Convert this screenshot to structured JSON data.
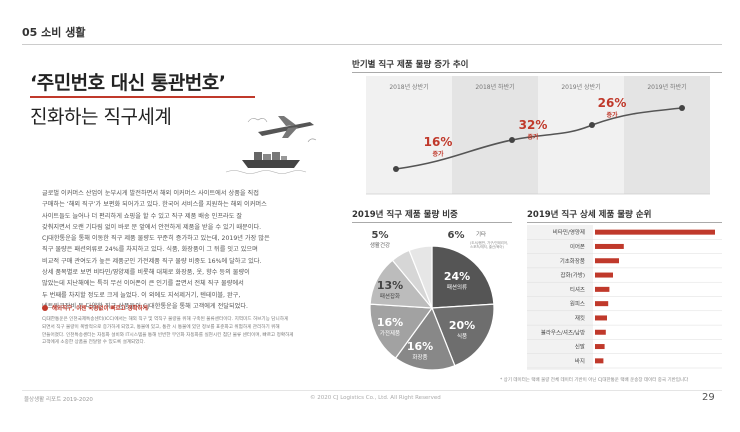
{
  "section": {
    "label": "05 소비 생활"
  },
  "heading": {
    "line1": "‘주민번호 대신 통관번호’",
    "line2": "진화하는 직구세계"
  },
  "body_text": "글로벌 이커머스 산업이 눈부시게 발전하면서 해외 이커머스 사이트에서 상품을 직접\n구매하는 ‘해외 직구’가 보편화 되어가고 있다. 한국어 서비스를 지원하는 해외 이커머스\n사이트들도 늘어나 더 편리하게 쇼핑을 할 수 있고 직구 제품 배송 인프라도 잘\n갖춰지면서 오랜 기다림 없이 바로 문 앞에서 안전하게 제품을 받을 수 있기 때문이다.\nCJ대한통운을 통해 이동한 직구 제품 물량도 꾸준히 증가하고 있는데, 2019년 가장 많은\n직구 물량은 패션의류로 24%를 차지하고 있다. 식품, 화장품이 그 뒤를 잇고 있으며\n비교적 구매 관여도가 높은 제품군인 가전제품 직구 물량 비중도 16%에 달하고 있다.\n상세 품목별로 보면 비타민/영양제를 비롯해 대체로 화장품, 옷, 향수 등의 물량이\n많았는데 지난해에는 특히 무선 이어폰이 큰 인기를 끌면서 전체 직구 물량에서\n두 번째를 차지할 정도로 크게 늘었다. 이 외에도 지석제거기, 텐테이블, 완구,\n네트워크장비 등 다양한 직구 상품들이 CJ대한통운을 통해 고객에게 전달되었다.",
  "note": {
    "title": "해외직구, 이젠 국경없이 빠르고 정확하게",
    "text": "CJ대한통운은 인천국제특송센터(ICC)에서는 해외 직구 및 역직구 물량을 위해 구축된 물류센터이다. 지역미드 허브기능 담니하게\n되면서 직구 물량이 폭발적으로 증가하게 되었고, 통불에 있고, 통관 시 통불에 있던 정보를 표준화고 위험하게 관리하기 위해\n만들어졌다. 인천특송센터는 자동화 설비와 IT시스템을 통해 빈번한 무인화 자동화를 실현시킨 첨단 물류 센터이며, 빠르고 정확하게\n고객에게 소중한 상품을 전달할 수 있도록 설계되었다."
  },
  "line_chart": {
    "title": "반기별 직구 제품 물량 증가 추이",
    "periods": [
      "2018년 상반기",
      "2018년 하반기",
      "2019년 상반기",
      "2019년 하반기"
    ],
    "growth": [
      {
        "pct": "16%",
        "label": "증가"
      },
      {
        "pct": "32%",
        "label": "증가"
      },
      {
        "pct": "26%",
        "label": "증가"
      }
    ]
  },
  "chart_data": [
    {
      "type": "line",
      "title": "반기별 직구 제품 물량 증가 추이",
      "categories": [
        "2018년 상반기",
        "2018년 하반기",
        "2019년 상반기",
        "2019년 하반기"
      ],
      "annotations": [
        "16% 증가",
        "32% 증가",
        "26% 증가"
      ]
    },
    {
      "type": "pie",
      "title": "2019년 직구 제품 물량 비중",
      "labels": [
        "패션의류",
        "식품",
        "화장품",
        "가전제품",
        "패션잡화",
        "생활건강",
        "기타"
      ],
      "values": [
        24,
        20,
        16,
        16,
        13,
        5,
        6
      ]
    },
    {
      "type": "bar",
      "title": "2019년 직구 상세 제품 물량 순위",
      "categories": [
        "비타민/영양제",
        "이어폰",
        "기초화장품",
        "잡화(가방)",
        "티셔츠",
        "원피스",
        "재킷",
        "블라우스/셔츠/남방",
        "신발",
        "바지"
      ],
      "values": [
        100,
        24,
        20,
        15,
        12,
        11,
        10,
        9,
        8,
        7
      ]
    }
  ],
  "pie": {
    "title": "2019년 직구 제품 물량 비중",
    "slices": [
      {
        "name": "패션의류",
        "pct": "24%",
        "value": 24,
        "color": "#555555"
      },
      {
        "name": "식품",
        "pct": "20%",
        "value": 20,
        "color": "#6e6e6e"
      },
      {
        "name": "화장품",
        "pct": "16%",
        "value": 16,
        "color": "#888888"
      },
      {
        "name": "가전제품",
        "pct": "16%",
        "value": 16,
        "color": "#a2a2a2"
      },
      {
        "name": "패션잡화",
        "pct": "13%",
        "value": 13,
        "color": "#bcbcbc"
      },
      {
        "name": "생활건강",
        "pct": "5%",
        "value": 5,
        "color": "#d6d6d6"
      },
      {
        "name": "기타",
        "pct": "6%",
        "value": 6,
        "color": "#e6e6e6"
      }
    ],
    "other_detail": "(도서/음반, 가구/인테리어,\n스포츠/레저, 출산/육아)"
  },
  "bars": {
    "title": "2019년 직구 상세 제품 물량 순위",
    "items": [
      "비타민/영양제",
      "이어폰",
      "기초화장품",
      "잡화(가방)",
      "티셔츠",
      "원피스",
      "재킷",
      "블라우스/셔츠/남방",
      "신발",
      "바지"
    ]
  },
  "footnote": "* 상기 데이터는 택배 물량 전체 데이터 기반이 아닌 CJ대한통운 택배 운송장 데이터 중국 기반입니다",
  "footer": {
    "left": "물상생활 리포트 2019-2020",
    "middle": "© 2020 CJ Logistics Co., Ltd. All Right Reserved",
    "page": "29"
  },
  "colors": {
    "accent": "#c0392b",
    "text": "#333333"
  }
}
